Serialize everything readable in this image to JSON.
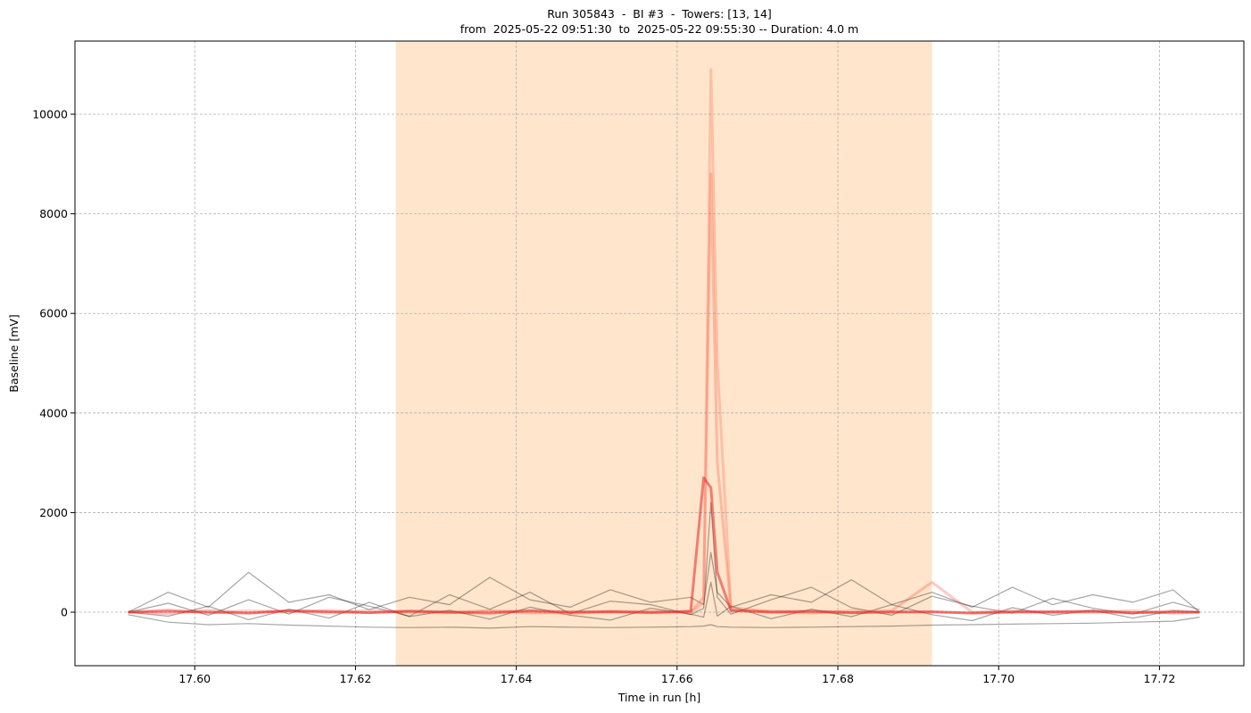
{
  "chart_data": {
    "type": "line",
    "title": "Run 305843  -  BI #3  -  Towers: [13, 14]",
    "subtitle": "from  2025-05-22 09:51:30  to  2025-05-22 09:55:30 -- Duration: 4.0 m",
    "x_label": "Time in run [h]",
    "y_label": "Baseline [mV]",
    "x": [
      17.5917,
      17.5967,
      17.6017,
      17.6067,
      17.6117,
      17.6167,
      17.6217,
      17.6267,
      17.6317,
      17.6367,
      17.6417,
      17.6467,
      17.6517,
      17.6567,
      17.6617,
      17.6633,
      17.6642,
      17.665,
      17.6667,
      17.6717,
      17.6767,
      17.6817,
      17.6867,
      17.6917,
      17.6967,
      17.7017,
      17.7067,
      17.7117,
      17.7167,
      17.7217,
      17.725
    ],
    "series": [
      {
        "color": "rgba(0,0,0,0.35)",
        "values": [
          -50,
          -200,
          -250,
          -230,
          -260,
          -280,
          -300,
          -310,
          -300,
          -320,
          -290,
          -300,
          -310,
          -300,
          -290,
          -280,
          -250,
          -290,
          -300,
          -310,
          -300,
          -290,
          -280,
          -260,
          -250,
          -240,
          -230,
          -220,
          -200,
          -180,
          -100
        ]
      },
      {
        "color": "rgba(0,0,0,0.35)",
        "values": [
          0,
          180,
          -60,
          250,
          -40,
          300,
          120,
          -80,
          350,
          60,
          400,
          -30,
          220,
          150,
          -50,
          80,
          2200,
          300,
          -40,
          250,
          500,
          90,
          -60,
          320,
          120,
          -20,
          280,
          80,
          -40,
          200,
          50
        ]
      },
      {
        "color": "rgba(0,0,0,0.35)",
        "values": [
          0,
          -80,
          120,
          -150,
          60,
          -120,
          200,
          -90,
          40,
          -140,
          100,
          -60,
          -160,
          80,
          -40,
          -100,
          600,
          -80,
          120,
          -130,
          60,
          -90,
          150,
          -50,
          -170,
          90,
          -60,
          40,
          -120,
          30,
          0
        ]
      },
      {
        "color": "rgba(0,0,0,0.35)",
        "values": [
          0,
          400,
          100,
          800,
          200,
          350,
          50,
          300,
          150,
          700,
          250,
          100,
          450,
          200,
          300,
          150,
          1200,
          400,
          100,
          350,
          200,
          650,
          150,
          400,
          100,
          500,
          150,
          350,
          200,
          450,
          0
        ]
      },
      {
        "color": "rgba(255,80,60,0.25)",
        "values": [
          0,
          50,
          -20,
          30,
          0,
          40,
          -10,
          20,
          0,
          30,
          -20,
          10,
          0,
          20,
          -10,
          200,
          10900,
          5000,
          100,
          0,
          -20,
          30,
          10,
          0,
          -10,
          20,
          0,
          10,
          -20,
          30,
          0
        ]
      },
      {
        "color": "rgba(255,80,60,0.3)",
        "values": [
          0,
          -30,
          40,
          -10,
          20,
          -20,
          30,
          0,
          -10,
          20,
          10,
          -30,
          20,
          0,
          10,
          300,
          8800,
          3000,
          50,
          20,
          0,
          -10,
          30,
          600,
          0,
          20,
          -10,
          0,
          30,
          -20,
          0
        ]
      },
      {
        "color": "rgba(230,20,20,0.5)",
        "values": [
          0,
          20,
          0,
          -20,
          30,
          10,
          -10,
          20,
          0,
          -20,
          30,
          0,
          10,
          -10,
          20,
          2700,
          2500,
          800,
          30,
          0,
          20,
          -10,
          0,
          10,
          -20,
          0,
          10,
          20,
          -10,
          0,
          0
        ]
      }
    ],
    "spans": [
      {
        "x0": 17.625,
        "x1": 17.6917,
        "color": "rgba(253,198,140,0.45)"
      }
    ],
    "xlim": [
      17.5851,
      17.7305
    ],
    "ylim": [
      -1075,
      11470
    ],
    "xticks": [
      {
        "value": 17.6,
        "label": "17.60"
      },
      {
        "value": 17.62,
        "label": "17.62"
      },
      {
        "value": 17.64,
        "label": "17.64"
      },
      {
        "value": 17.66,
        "label": "17.66"
      },
      {
        "value": 17.68,
        "label": "17.68"
      },
      {
        "value": 17.7,
        "label": "17.70"
      },
      {
        "value": 17.72,
        "label": "17.72"
      }
    ],
    "yticks": [
      0,
      2000,
      4000,
      6000,
      8000,
      10000
    ],
    "grid": true
  }
}
